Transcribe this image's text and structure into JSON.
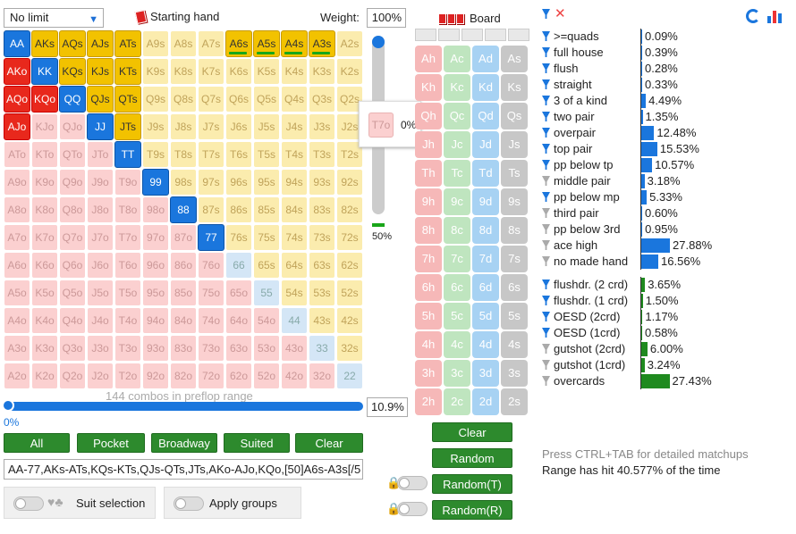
{
  "limit": {
    "value": "No limit"
  },
  "header": {
    "starting_hand": "Starting hand",
    "weight_label": "Weight:",
    "weight_value": "100%",
    "board_label": "Board"
  },
  "grid": [
    [
      "AA",
      "AKs",
      "AQs",
      "AJs",
      "ATs",
      "A9s",
      "A8s",
      "A7s",
      "A6s",
      "A5s",
      "A4s",
      "A3s",
      "A2s"
    ],
    [
      "AKo",
      "KK",
      "KQs",
      "KJs",
      "KTs",
      "K9s",
      "K8s",
      "K7s",
      "K6s",
      "K5s",
      "K4s",
      "K3s",
      "K2s"
    ],
    [
      "AQo",
      "KQo",
      "QQ",
      "QJs",
      "QTs",
      "Q9s",
      "Q8s",
      "Q7s",
      "Q6s",
      "Q5s",
      "Q4s",
      "Q3s",
      "Q2s"
    ],
    [
      "AJo",
      "KJo",
      "QJo",
      "JJ",
      "JTs",
      "J9s",
      "J8s",
      "J7s",
      "J6s",
      "J5s",
      "J4s",
      "J3s",
      "J2s"
    ],
    [
      "ATo",
      "KTo",
      "QTo",
      "JTo",
      "TT",
      "T9s",
      "T8s",
      "T7s",
      "T6s",
      "T5s",
      "T4s",
      "T3s",
      "T2s"
    ],
    [
      "A9o",
      "K9o",
      "Q9o",
      "J9o",
      "T9o",
      "99",
      "98s",
      "97s",
      "96s",
      "95s",
      "94s",
      "93s",
      "92s"
    ],
    [
      "A8o",
      "K8o",
      "Q8o",
      "J8o",
      "T8o",
      "98o",
      "88",
      "87s",
      "86s",
      "85s",
      "84s",
      "83s",
      "82s"
    ],
    [
      "A7o",
      "K7o",
      "Q7o",
      "J7o",
      "T7o",
      "97o",
      "87o",
      "77",
      "76s",
      "75s",
      "74s",
      "73s",
      "72s"
    ],
    [
      "A6o",
      "K6o",
      "Q6o",
      "J6o",
      "T6o",
      "96o",
      "86o",
      "76o",
      "66",
      "65s",
      "64s",
      "63s",
      "62s"
    ],
    [
      "A5o",
      "K5o",
      "Q5o",
      "J5o",
      "T5o",
      "95o",
      "85o",
      "75o",
      "65o",
      "55",
      "54s",
      "53s",
      "52s"
    ],
    [
      "A4o",
      "K4o",
      "Q4o",
      "J4o",
      "T4o",
      "94o",
      "84o",
      "74o",
      "64o",
      "54o",
      "44",
      "43s",
      "42s"
    ],
    [
      "A3o",
      "K3o",
      "Q3o",
      "J3o",
      "T3o",
      "93o",
      "83o",
      "73o",
      "63o",
      "53o",
      "43o",
      "33",
      "32s"
    ],
    [
      "A2o",
      "K2o",
      "Q2o",
      "J2o",
      "T2o",
      "92o",
      "82o",
      "72o",
      "62o",
      "52o",
      "42o",
      "32o",
      "22"
    ]
  ],
  "selected": [
    "AA",
    "AKs",
    "AQs",
    "AJs",
    "ATs",
    "AKo",
    "KK",
    "KQs",
    "KJs",
    "KTs",
    "AQo",
    "KQo",
    "QQ",
    "QJs",
    "QTs",
    "AJo",
    "JJ",
    "JTs",
    "TT",
    "99",
    "88",
    "77",
    "A6s",
    "A5s",
    "A4s",
    "A3s"
  ],
  "half_weight": [
    "A6s",
    "A5s",
    "A4s",
    "A3s"
  ],
  "tooltip": {
    "hand": "T7o",
    "value": "0%"
  },
  "slider": {
    "vertical_value": "50%",
    "combos": "144 combos in preflop range",
    "hand_pct": "10.9%",
    "left_value": "0%"
  },
  "buttons": {
    "all": "All",
    "pocket": "Pocket",
    "broadway": "Broadway",
    "suited": "Suited",
    "clear": "Clear",
    "board_clear": "Clear",
    "random": "Random",
    "random_t": "Random(T)",
    "random_r": "Random(R)"
  },
  "range_text": "AA-77,AKs-ATs,KQs-KTs,QJs-QTs,JTs,AKo-AJo,KQo,[50]A6s-A3s[/5",
  "toggles": {
    "suit_selection": "Suit selection",
    "apply_groups": "Apply groups"
  },
  "deck": [
    [
      "Ah",
      "Ac",
      "Ad",
      "As"
    ],
    [
      "Kh",
      "Kc",
      "Kd",
      "Ks"
    ],
    [
      "Qh",
      "Qc",
      "Qd",
      "Qs"
    ],
    [
      "Jh",
      "Jc",
      "Jd",
      "Js"
    ],
    [
      "Th",
      "Tc",
      "Td",
      "Ts"
    ],
    [
      "9h",
      "9c",
      "9d",
      "9s"
    ],
    [
      "8h",
      "8c",
      "8d",
      "8s"
    ],
    [
      "7h",
      "7c",
      "7d",
      "7s"
    ],
    [
      "6h",
      "6c",
      "6d",
      "6s"
    ],
    [
      "5h",
      "5c",
      "5d",
      "5s"
    ],
    [
      "4h",
      "4c",
      "4d",
      "4s"
    ],
    [
      "3h",
      "3c",
      "3d",
      "3s"
    ],
    [
      "2h",
      "2c",
      "2d",
      "2s"
    ]
  ],
  "stats": [
    {
      "name": ">=quads",
      "value": "0.09%",
      "pct": 0.09,
      "active": true,
      "green": false
    },
    {
      "name": "full house",
      "value": "0.39%",
      "pct": 0.39,
      "active": true,
      "green": false
    },
    {
      "name": "flush",
      "value": "0.28%",
      "pct": 0.28,
      "active": true,
      "green": false
    },
    {
      "name": "straight",
      "value": "0.33%",
      "pct": 0.33,
      "active": true,
      "green": false
    },
    {
      "name": "3 of a kind",
      "value": "4.49%",
      "pct": 4.49,
      "active": true,
      "green": false
    },
    {
      "name": "two pair",
      "value": "1.35%",
      "pct": 1.35,
      "active": true,
      "green": false
    },
    {
      "name": "overpair",
      "value": "12.48%",
      "pct": 12.48,
      "active": true,
      "green": false
    },
    {
      "name": "top pair",
      "value": "15.53%",
      "pct": 15.53,
      "active": true,
      "green": false
    },
    {
      "name": "pp below tp",
      "value": "10.57%",
      "pct": 10.57,
      "active": true,
      "green": false
    },
    {
      "name": "middle pair",
      "value": "3.18%",
      "pct": 3.18,
      "active": false,
      "green": false
    },
    {
      "name": "pp below mp",
      "value": "5.33%",
      "pct": 5.33,
      "active": true,
      "green": false
    },
    {
      "name": "third pair",
      "value": "0.60%",
      "pct": 0.6,
      "active": false,
      "green": false
    },
    {
      "name": "pp below 3rd",
      "value": "0.95%",
      "pct": 0.95,
      "active": false,
      "green": false
    },
    {
      "name": "ace high",
      "value": "27.88%",
      "pct": 27.88,
      "active": false,
      "green": false
    },
    {
      "name": "no made hand",
      "value": "16.56%",
      "pct": 16.56,
      "active": false,
      "green": false
    }
  ],
  "draws": [
    {
      "name": "flushdr. (2 crd)",
      "value": "3.65%",
      "pct": 3.65,
      "active": true
    },
    {
      "name": "flushdr. (1 crd)",
      "value": "1.50%",
      "pct": 1.5,
      "active": true
    },
    {
      "name": "OESD (2crd)",
      "value": "1.17%",
      "pct": 1.17,
      "active": true
    },
    {
      "name": "OESD (1crd)",
      "value": "0.58%",
      "pct": 0.58,
      "active": true
    },
    {
      "name": "gutshot (2crd)",
      "value": "6.00%",
      "pct": 6.0,
      "active": false
    },
    {
      "name": "gutshot (1crd)",
      "value": "3.24%",
      "pct": 3.24,
      "active": false
    },
    {
      "name": "overcards",
      "value": "27.43%",
      "pct": 27.43,
      "active": false
    }
  ],
  "footer": {
    "hint": "Press CTRL+TAB for detailed matchups",
    "hit": "Range has hit 40.577% of the time"
  }
}
